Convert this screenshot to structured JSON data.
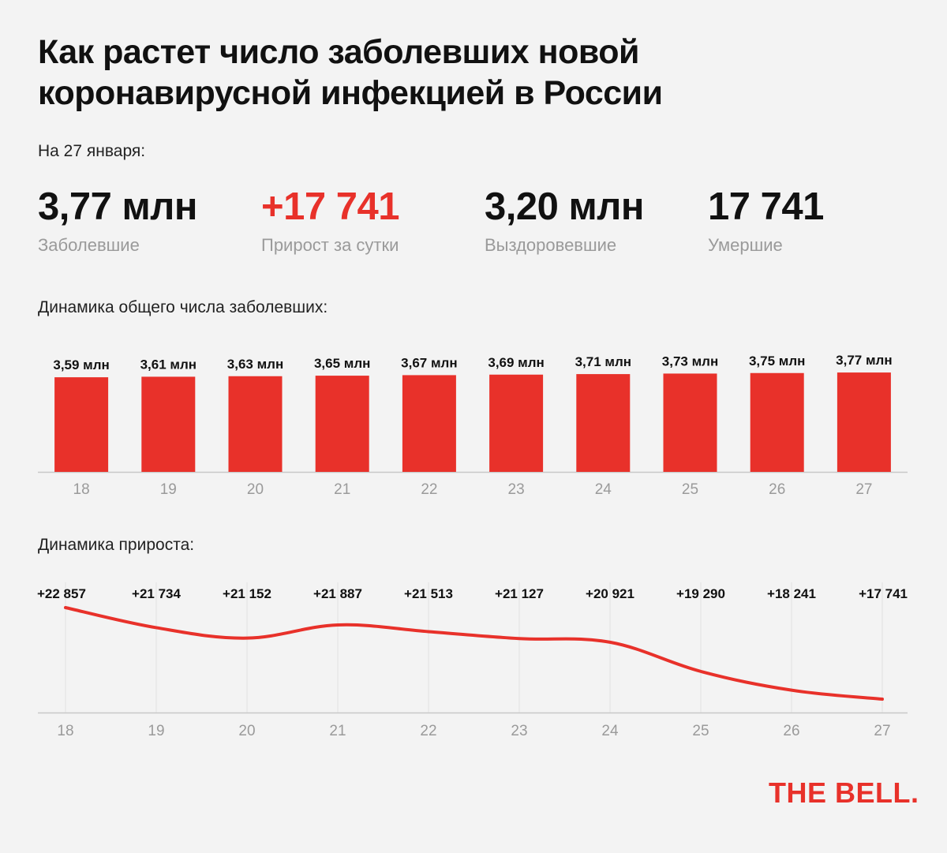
{
  "title": "Как растет число заболевших новой коронавирусной инфекцией в России",
  "date_label": "На 27 января:",
  "stats": [
    {
      "value": "3,77 млн",
      "label": "Заболевшие",
      "color": "#111111"
    },
    {
      "value": "+17 741",
      "label": "Прирост за сутки",
      "color": "#e8312a"
    },
    {
      "value": "3,20 млн",
      "label": "Выздоровевшие",
      "color": "#111111"
    },
    {
      "value": "17 741",
      "label": "Умершие",
      "color": "#111111"
    }
  ],
  "brand": "THE BELL.",
  "colors": {
    "accent": "#e8312a",
    "axis": "#c8c8c8",
    "tick": "#9a9a9a",
    "grid": "#e2e2e2"
  },
  "chart_data": [
    {
      "type": "bar",
      "title": "Динамика общего числа заболевших:",
      "categories": [
        "18",
        "19",
        "20",
        "21",
        "22",
        "23",
        "24",
        "25",
        "26",
        "27"
      ],
      "values": [
        3.59,
        3.61,
        3.63,
        3.65,
        3.67,
        3.69,
        3.71,
        3.73,
        3.75,
        3.77
      ],
      "value_labels": [
        "3,59 млн",
        "3,61 млн",
        "3,63 млн",
        "3,65 млн",
        "3,67 млн",
        "3,69 млн",
        "3,71 млн",
        "3,73 млн",
        "3,75 млн",
        "3,77 млн"
      ],
      "unit": "млн",
      "grid": false
    },
    {
      "type": "line",
      "title": "Динамика прироста:",
      "x": [
        "18",
        "19",
        "20",
        "21",
        "22",
        "23",
        "24",
        "25",
        "26",
        "27"
      ],
      "values": [
        22857,
        21734,
        21152,
        21887,
        21513,
        21127,
        20921,
        19290,
        18241,
        17741
      ],
      "value_labels": [
        "+22 857",
        "+21 734",
        "+21 152",
        "+21 887",
        "+21 513",
        "+21 127",
        "+20 921",
        "+19 290",
        "+18 241",
        "+17 741"
      ],
      "grid": "vertical"
    }
  ]
}
